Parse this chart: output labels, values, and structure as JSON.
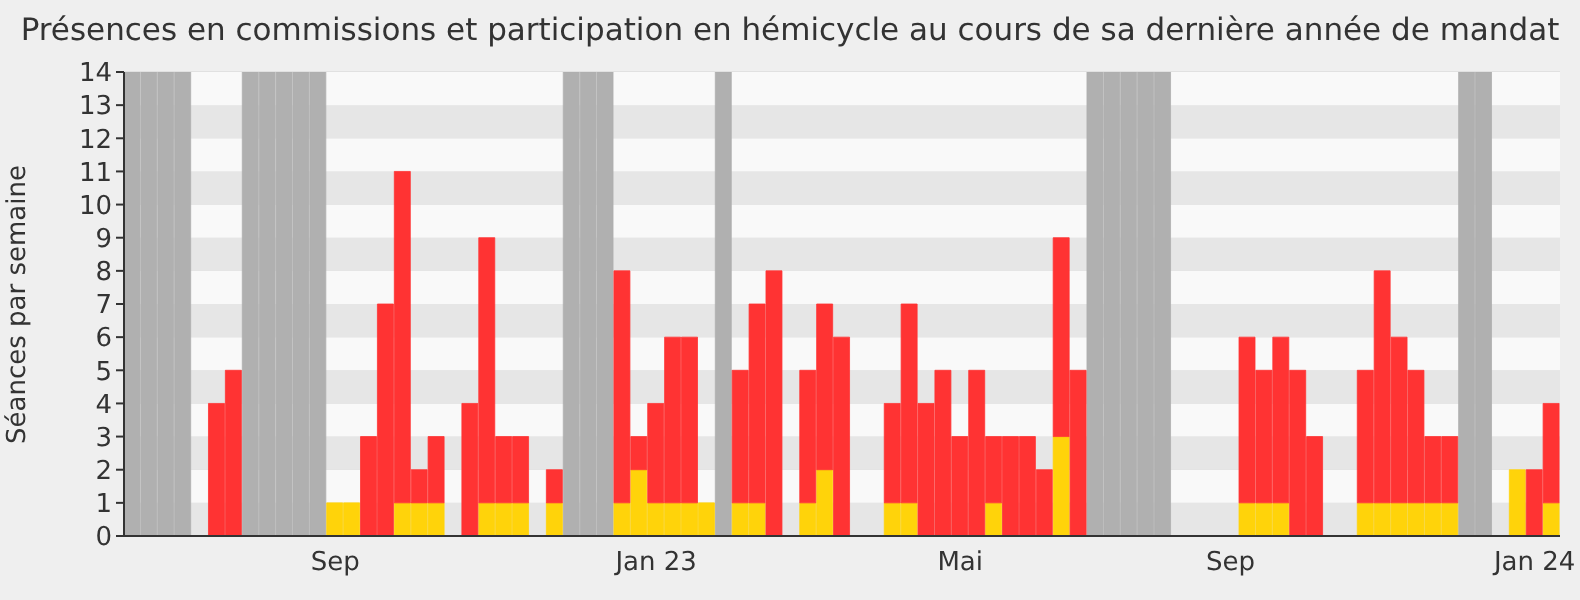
{
  "chart_data": {
    "type": "bar",
    "title": "Présences en commissions et participation en hémicycle au cours de sa dernière année de mandat",
    "ylabel": "Séances par semaine",
    "categories": [
      null,
      null,
      null,
      null,
      null,
      null,
      null,
      null,
      null,
      null,
      null,
      null,
      "Sep",
      null,
      null,
      null,
      null,
      null,
      null,
      null,
      null,
      null,
      null,
      null,
      null,
      null,
      null,
      null,
      null,
      null,
      null,
      "Jan 23",
      null,
      null,
      null,
      null,
      null,
      null,
      null,
      null,
      null,
      null,
      null,
      null,
      null,
      null,
      null,
      null,
      null,
      "Mai",
      null,
      null,
      null,
      null,
      null,
      null,
      null,
      null,
      null,
      null,
      null,
      null,
      null,
      null,
      null,
      "Sep",
      null,
      null,
      null,
      null,
      null,
      null,
      null,
      null,
      null,
      null,
      null,
      null,
      null,
      null,
      null,
      null,
      null,
      "Jan 24",
      null
    ],
    "series": [
      {
        "color": "#b0b0b0",
        "values": [
          14,
          14,
          14,
          14,
          null,
          null,
          null,
          14,
          14,
          14,
          14,
          14,
          null,
          null,
          null,
          null,
          null,
          null,
          null,
          null,
          null,
          null,
          null,
          null,
          null,
          null,
          14,
          14,
          14,
          null,
          null,
          null,
          null,
          null,
          null,
          14,
          null,
          null,
          null,
          null,
          null,
          null,
          null,
          null,
          null,
          null,
          null,
          null,
          null,
          null,
          null,
          null,
          null,
          null,
          null,
          null,
          null,
          14,
          14,
          14,
          14,
          14,
          null,
          null,
          null,
          null,
          null,
          null,
          null,
          null,
          null,
          null,
          null,
          null,
          null,
          null,
          null,
          null,
          null,
          14,
          14,
          null,
          null,
          null,
          null
        ]
      },
      {
        "color": "#ffd30a",
        "values": [
          null,
          null,
          null,
          null,
          null,
          0,
          0,
          null,
          null,
          null,
          null,
          null,
          1,
          1,
          0,
          0,
          1,
          1,
          1,
          null,
          0,
          1,
          1,
          1,
          null,
          1,
          null,
          null,
          null,
          1,
          2,
          1,
          1,
          1,
          1,
          null,
          1,
          1,
          0,
          null,
          1,
          2,
          0,
          null,
          null,
          1,
          1,
          0,
          0,
          0,
          0,
          1,
          0,
          0,
          0,
          3,
          0,
          null,
          null,
          null,
          null,
          null,
          null,
          null,
          null,
          null,
          1,
          1,
          1,
          0,
          0,
          null,
          null,
          1,
          1,
          1,
          1,
          1,
          1,
          null,
          null,
          null,
          2,
          0,
          1
        ]
      },
      {
        "color": "#ff3333",
        "values": [
          null,
          null,
          null,
          null,
          null,
          4,
          5,
          null,
          null,
          null,
          null,
          null,
          0,
          0,
          3,
          7,
          10,
          1,
          2,
          null,
          4,
          8,
          2,
          2,
          null,
          1,
          null,
          null,
          null,
          7,
          1,
          3,
          5,
          5,
          0,
          null,
          4,
          6,
          8,
          null,
          4,
          5,
          6,
          null,
          null,
          3,
          6,
          4,
          5,
          3,
          5,
          2,
          3,
          3,
          2,
          6,
          5,
          null,
          null,
          null,
          null,
          null,
          null,
          null,
          null,
          null,
          5,
          4,
          5,
          5,
          3,
          null,
          null,
          4,
          7,
          5,
          4,
          2,
          2,
          null,
          null,
          null,
          0,
          2,
          3
        ]
      }
    ],
    "stacked": true,
    "ylim": [
      0,
      14
    ],
    "yticks": [
      0,
      1,
      2,
      3,
      4,
      5,
      6,
      7,
      8,
      9,
      10,
      11,
      12,
      13,
      14
    ],
    "grid": "y"
  }
}
